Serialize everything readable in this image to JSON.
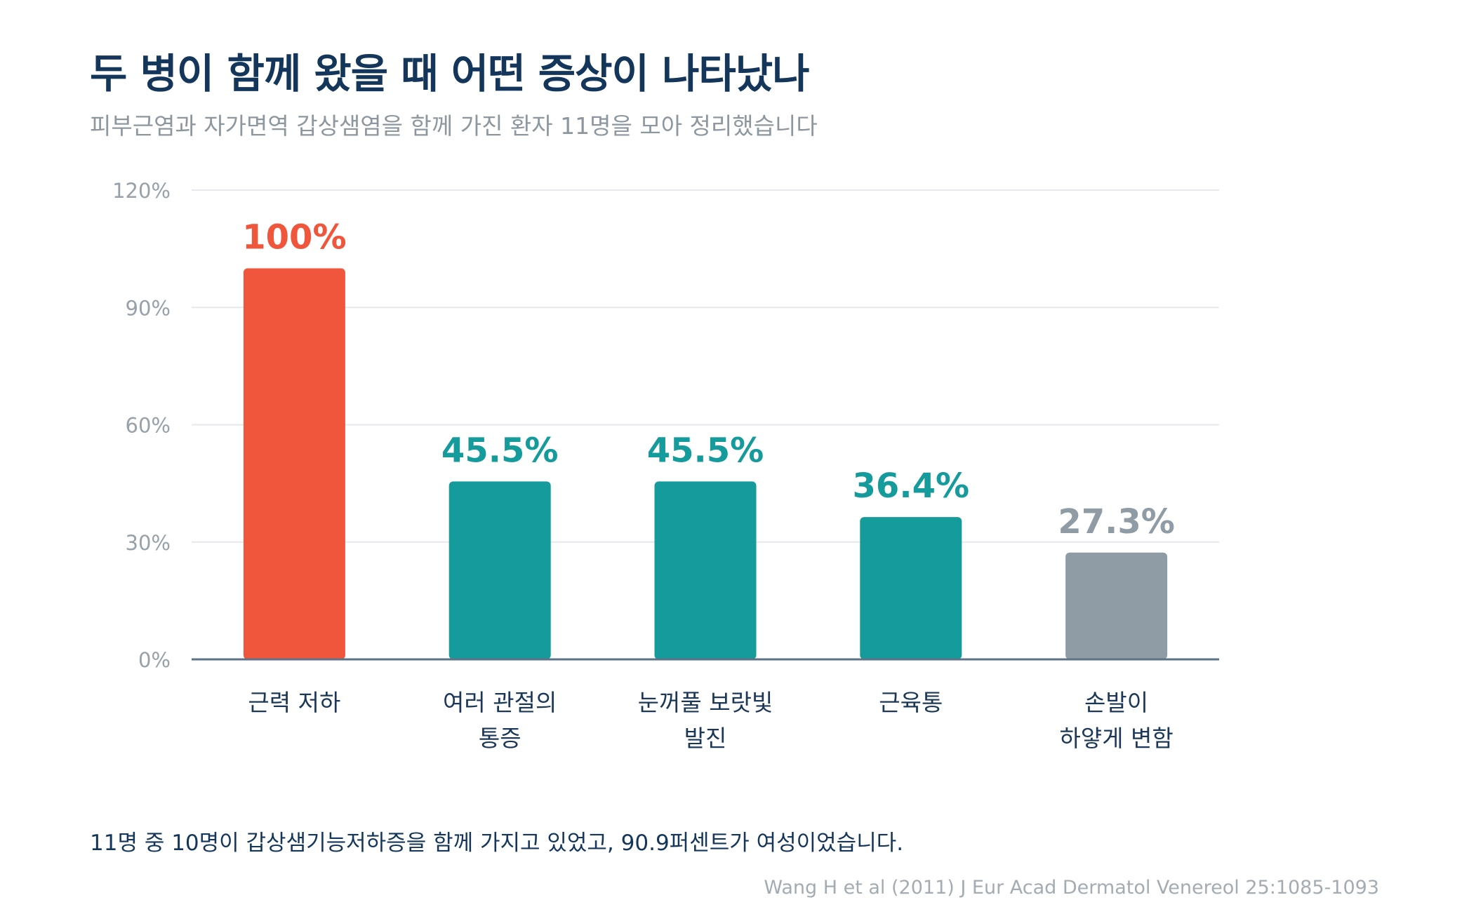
{
  "header": {
    "title": "두 병이 함께 왔을 때 어떤 증상이 나타났나",
    "subtitle": "피부근염과 자가면역 갑상샘염을 함께 가진 환자 11명을 모아 정리했습니다"
  },
  "chart_data": {
    "type": "bar",
    "categories": [
      [
        "근력 저하"
      ],
      [
        "여러 관절의",
        "통증"
      ],
      [
        "눈꺼풀 보랏빛",
        "발진"
      ],
      [
        "근육통"
      ],
      [
        "손발이",
        "하얗게 변함"
      ]
    ],
    "values": [
      100,
      45.5,
      45.5,
      36.4,
      27.3
    ],
    "data_labels": [
      "100%",
      "45.5%",
      "45.5%",
      "36.4%",
      "27.3%"
    ],
    "bar_colors": [
      "#f0563c",
      "#169b9c",
      "#169b9c",
      "#169b9c",
      "#8f9ca5"
    ],
    "ylim": [
      0,
      120
    ],
    "yticks": [
      0,
      30,
      60,
      90,
      120
    ],
    "ytick_labels": [
      "0%",
      "30%",
      "60%",
      "90%",
      "120%"
    ],
    "grid": true,
    "xlabel": "",
    "ylabel": ""
  },
  "footer": {
    "note": "11명 중 10명이 갑상샘기능저하증을 함께 가지고 있었고, 90.9퍼센트가 여성이었습니다.",
    "source": "Wang H et al (2011) J Eur Acad Dermatol Venereol 25:1085-1093"
  },
  "colors": {
    "title": "#14365a",
    "muted": "#8d979f",
    "grid": "#e6e9ec",
    "axis": "#5d7388",
    "tick": "#97a1a9",
    "category": "#1c3858"
  }
}
